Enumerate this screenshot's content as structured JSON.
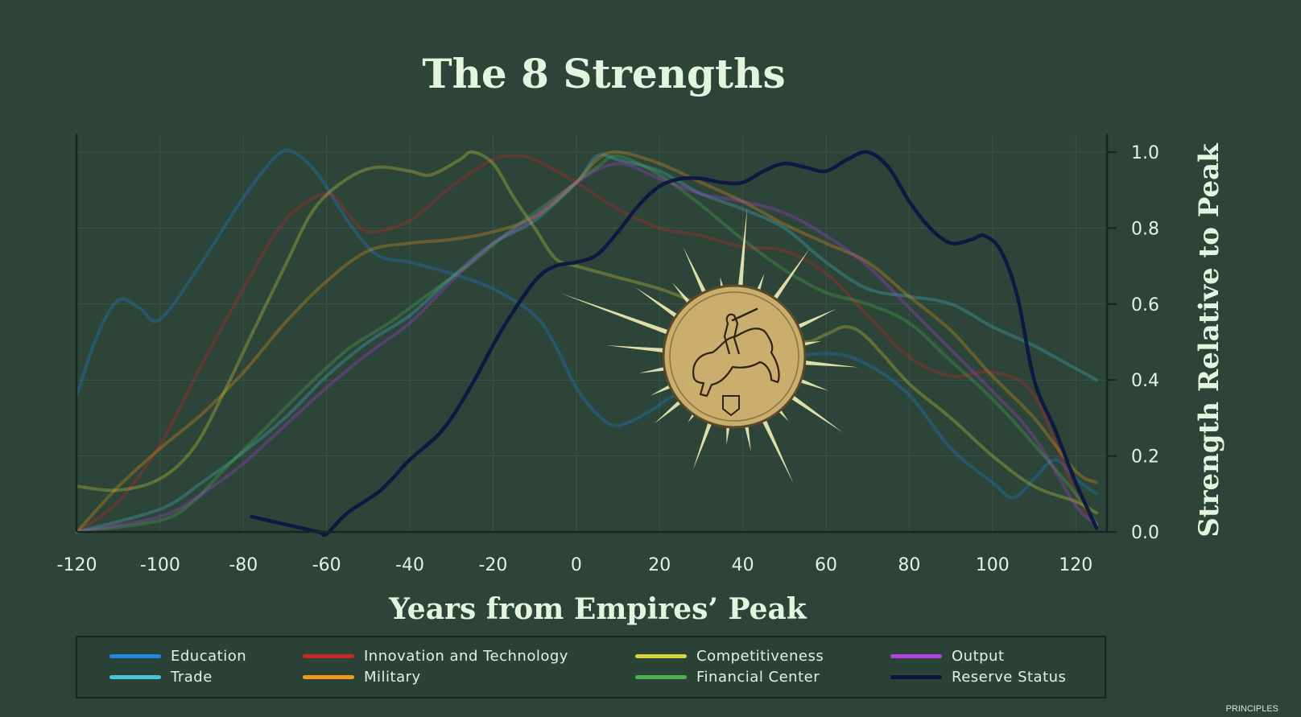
{
  "title": "The 8 Strengths",
  "watermark": "PRINCIPLES",
  "colors": {
    "background": "#2d4439",
    "axis": "#17261f",
    "text": "#e3f5df",
    "medallion": "#c9ae6d"
  },
  "medallion": {
    "icon": "horseman-coin-icon"
  },
  "chart_data": {
    "type": "line",
    "title": "The 8 Strengths",
    "xlabel": "Years from Empires’ Peak",
    "ylabel": "Strength Relative to Peak",
    "xlim": [
      -120,
      125
    ],
    "ylim": [
      0,
      1.0
    ],
    "xticks": [
      -120,
      -100,
      -80,
      -60,
      -40,
      -20,
      0,
      20,
      40,
      60,
      80,
      100,
      120
    ],
    "yticks": [
      0.0,
      0.2,
      0.4,
      0.6,
      0.8,
      1.0
    ],
    "ytick_labels": [
      "0.0",
      "0.2",
      "0.4",
      "0.6",
      "0.8",
      "1.0"
    ],
    "grid": true,
    "legend_position": "bottom",
    "series": [
      {
        "name": "Education",
        "color": "#1e88e5",
        "opacity": 0.28,
        "points": [
          [
            -120,
            0.36
          ],
          [
            -115,
            0.52
          ],
          [
            -110,
            0.61
          ],
          [
            -105,
            0.59
          ],
          [
            -100,
            0.56
          ],
          [
            -90,
            0.71
          ],
          [
            -80,
            0.88
          ],
          [
            -72,
            0.99
          ],
          [
            -68,
            1.0
          ],
          [
            -62,
            0.94
          ],
          [
            -55,
            0.82
          ],
          [
            -48,
            0.73
          ],
          [
            -40,
            0.71
          ],
          [
            -30,
            0.68
          ],
          [
            -20,
            0.64
          ],
          [
            -10,
            0.57
          ],
          [
            -5,
            0.49
          ],
          [
            0,
            0.38
          ],
          [
            5,
            0.31
          ],
          [
            10,
            0.28
          ],
          [
            18,
            0.32
          ],
          [
            22,
            0.35
          ],
          [
            30,
            0.4
          ],
          [
            40,
            0.44
          ],
          [
            60,
            0.47
          ],
          [
            70,
            0.44
          ],
          [
            80,
            0.36
          ],
          [
            90,
            0.22
          ],
          [
            100,
            0.13
          ],
          [
            105,
            0.09
          ],
          [
            110,
            0.14
          ],
          [
            115,
            0.19
          ],
          [
            120,
            0.14
          ],
          [
            125,
            0.1
          ]
        ]
      },
      {
        "name": "Trade",
        "color": "#4fc3d9",
        "opacity": 0.28,
        "points": [
          [
            -120,
            0.0
          ],
          [
            -100,
            0.06
          ],
          [
            -90,
            0.13
          ],
          [
            -80,
            0.21
          ],
          [
            -70,
            0.3
          ],
          [
            -60,
            0.41
          ],
          [
            -50,
            0.5
          ],
          [
            -40,
            0.57
          ],
          [
            -30,
            0.67
          ],
          [
            -20,
            0.76
          ],
          [
            -10,
            0.82
          ],
          [
            0,
            0.92
          ],
          [
            5,
            0.99
          ],
          [
            10,
            0.98
          ],
          [
            20,
            0.95
          ],
          [
            30,
            0.89
          ],
          [
            40,
            0.85
          ],
          [
            50,
            0.8
          ],
          [
            60,
            0.71
          ],
          [
            70,
            0.64
          ],
          [
            80,
            0.62
          ],
          [
            90,
            0.6
          ],
          [
            100,
            0.54
          ],
          [
            110,
            0.49
          ],
          [
            120,
            0.43
          ],
          [
            125,
            0.4
          ]
        ]
      },
      {
        "name": "Innovation and Technology",
        "color": "#c62828",
        "opacity": 0.3,
        "points": [
          [
            -120,
            0.0
          ],
          [
            -110,
            0.08
          ],
          [
            -100,
            0.23
          ],
          [
            -90,
            0.44
          ],
          [
            -80,
            0.64
          ],
          [
            -70,
            0.82
          ],
          [
            -60,
            0.89
          ],
          [
            -55,
            0.84
          ],
          [
            -50,
            0.79
          ],
          [
            -40,
            0.82
          ],
          [
            -30,
            0.91
          ],
          [
            -20,
            0.98
          ],
          [
            -15,
            0.99
          ],
          [
            -10,
            0.98
          ],
          [
            0,
            0.92
          ],
          [
            10,
            0.85
          ],
          [
            20,
            0.8
          ],
          [
            30,
            0.78
          ],
          [
            40,
            0.75
          ],
          [
            50,
            0.74
          ],
          [
            60,
            0.68
          ],
          [
            70,
            0.57
          ],
          [
            80,
            0.46
          ],
          [
            90,
            0.41
          ],
          [
            100,
            0.42
          ],
          [
            110,
            0.36
          ],
          [
            120,
            0.1
          ],
          [
            125,
            0.02
          ]
        ]
      },
      {
        "name": "Military",
        "color": "#f09a1e",
        "opacity": 0.3,
        "points": [
          [
            -120,
            0.0
          ],
          [
            -110,
            0.12
          ],
          [
            -100,
            0.22
          ],
          [
            -90,
            0.31
          ],
          [
            -80,
            0.42
          ],
          [
            -70,
            0.55
          ],
          [
            -60,
            0.66
          ],
          [
            -50,
            0.74
          ],
          [
            -40,
            0.76
          ],
          [
            -30,
            0.77
          ],
          [
            -20,
            0.79
          ],
          [
            -10,
            0.83
          ],
          [
            0,
            0.92
          ],
          [
            5,
            0.98
          ],
          [
            10,
            1.0
          ],
          [
            20,
            0.97
          ],
          [
            30,
            0.92
          ],
          [
            40,
            0.87
          ],
          [
            50,
            0.81
          ],
          [
            60,
            0.76
          ],
          [
            70,
            0.71
          ],
          [
            80,
            0.62
          ],
          [
            90,
            0.53
          ],
          [
            100,
            0.41
          ],
          [
            110,
            0.3
          ],
          [
            120,
            0.16
          ],
          [
            125,
            0.13
          ]
        ]
      },
      {
        "name": "Competitiveness",
        "color": "#d8d63c",
        "opacity": 0.3,
        "points": [
          [
            -120,
            0.12
          ],
          [
            -110,
            0.11
          ],
          [
            -100,
            0.14
          ],
          [
            -92,
            0.22
          ],
          [
            -85,
            0.36
          ],
          [
            -78,
            0.52
          ],
          [
            -70,
            0.7
          ],
          [
            -63,
            0.85
          ],
          [
            -55,
            0.93
          ],
          [
            -48,
            0.96
          ],
          [
            -40,
            0.95
          ],
          [
            -35,
            0.94
          ],
          [
            -28,
            0.98
          ],
          [
            -25,
            1.0
          ],
          [
            -20,
            0.97
          ],
          [
            -15,
            0.88
          ],
          [
            -10,
            0.8
          ],
          [
            -5,
            0.72
          ],
          [
            0,
            0.7
          ],
          [
            10,
            0.67
          ],
          [
            20,
            0.64
          ],
          [
            30,
            0.6
          ],
          [
            40,
            0.57
          ],
          [
            50,
            0.53
          ],
          [
            55,
            0.5
          ],
          [
            60,
            0.52
          ],
          [
            65,
            0.54
          ],
          [
            70,
            0.51
          ],
          [
            80,
            0.39
          ],
          [
            90,
            0.3
          ],
          [
            100,
            0.2
          ],
          [
            110,
            0.12
          ],
          [
            120,
            0.08
          ],
          [
            125,
            0.05
          ]
        ]
      },
      {
        "name": "Financial Center",
        "color": "#4caf50",
        "opacity": 0.32,
        "points": [
          [
            -120,
            0.0
          ],
          [
            -100,
            0.03
          ],
          [
            -92,
            0.08
          ],
          [
            -85,
            0.16
          ],
          [
            -75,
            0.27
          ],
          [
            -65,
            0.38
          ],
          [
            -55,
            0.48
          ],
          [
            -45,
            0.55
          ],
          [
            -35,
            0.63
          ],
          [
            -25,
            0.71
          ],
          [
            -15,
            0.8
          ],
          [
            -5,
            0.88
          ],
          [
            5,
            0.96
          ],
          [
            10,
            0.99
          ],
          [
            20,
            0.94
          ],
          [
            30,
            0.86
          ],
          [
            40,
            0.77
          ],
          [
            50,
            0.69
          ],
          [
            60,
            0.63
          ],
          [
            70,
            0.6
          ],
          [
            80,
            0.55
          ],
          [
            90,
            0.45
          ],
          [
            100,
            0.35
          ],
          [
            110,
            0.23
          ],
          [
            120,
            0.1
          ],
          [
            125,
            0.02
          ]
        ]
      },
      {
        "name": "Output",
        "color": "#b040e0",
        "opacity": 0.3,
        "points": [
          [
            -120,
            0.0
          ],
          [
            -100,
            0.04
          ],
          [
            -90,
            0.1
          ],
          [
            -80,
            0.18
          ],
          [
            -70,
            0.28
          ],
          [
            -60,
            0.38
          ],
          [
            -50,
            0.47
          ],
          [
            -40,
            0.55
          ],
          [
            -30,
            0.66
          ],
          [
            -20,
            0.76
          ],
          [
            -10,
            0.83
          ],
          [
            0,
            0.92
          ],
          [
            10,
            0.97
          ],
          [
            20,
            0.93
          ],
          [
            30,
            0.89
          ],
          [
            40,
            0.87
          ],
          [
            50,
            0.84
          ],
          [
            60,
            0.78
          ],
          [
            70,
            0.7
          ],
          [
            80,
            0.59
          ],
          [
            90,
            0.48
          ],
          [
            100,
            0.37
          ],
          [
            110,
            0.25
          ],
          [
            120,
            0.07
          ],
          [
            125,
            0.02
          ]
        ]
      },
      {
        "name": "Reserve Status",
        "color": "#0d1640",
        "opacity": 0.95,
        "points": [
          [
            -78,
            0.04
          ],
          [
            -70,
            0.02
          ],
          [
            -62,
            0.0
          ],
          [
            -60,
            -0.005
          ],
          [
            -55,
            0.05
          ],
          [
            -47,
            0.11
          ],
          [
            -40,
            0.19
          ],
          [
            -32,
            0.27
          ],
          [
            -25,
            0.39
          ],
          [
            -18,
            0.53
          ],
          [
            -10,
            0.66
          ],
          [
            -5,
            0.7
          ],
          [
            0,
            0.71
          ],
          [
            5,
            0.73
          ],
          [
            10,
            0.79
          ],
          [
            15,
            0.86
          ],
          [
            20,
            0.91
          ],
          [
            25,
            0.93
          ],
          [
            30,
            0.93
          ],
          [
            35,
            0.92
          ],
          [
            40,
            0.92
          ],
          [
            45,
            0.95
          ],
          [
            50,
            0.97
          ],
          [
            55,
            0.96
          ],
          [
            60,
            0.95
          ],
          [
            65,
            0.98
          ],
          [
            70,
            1.0
          ],
          [
            75,
            0.96
          ],
          [
            80,
            0.87
          ],
          [
            85,
            0.8
          ],
          [
            90,
            0.76
          ],
          [
            95,
            0.77
          ],
          [
            98,
            0.78
          ],
          [
            102,
            0.74
          ],
          [
            106,
            0.62
          ],
          [
            110,
            0.4
          ],
          [
            115,
            0.27
          ],
          [
            120,
            0.13
          ],
          [
            125,
            0.01
          ]
        ]
      }
    ]
  },
  "legend": [
    {
      "label": "Education",
      "color": "#1e88e5"
    },
    {
      "label": "Trade",
      "color": "#4fc3d9"
    },
    {
      "label": "Innovation and Technology",
      "color": "#c62828"
    },
    {
      "label": "Military",
      "color": "#f09a1e"
    },
    {
      "label": "Competitiveness",
      "color": "#d8d63c"
    },
    {
      "label": "Financial Center",
      "color": "#4caf50"
    },
    {
      "label": "Output",
      "color": "#b040e0"
    },
    {
      "label": "Reserve Status",
      "color": "#0d1640"
    }
  ]
}
